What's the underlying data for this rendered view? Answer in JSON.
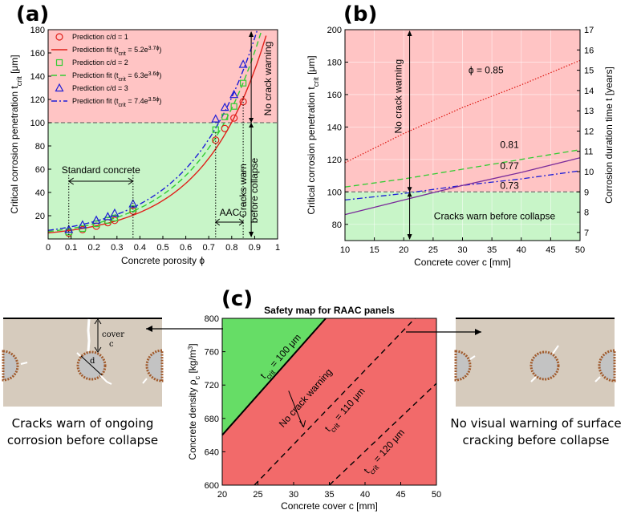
{
  "panel_labels": {
    "a": "(a)",
    "b": "(b)",
    "c": "(c)"
  },
  "colors": {
    "danger": "#ffc4c4",
    "safe": "#c8f5c8",
    "map_danger": "#f26a6a",
    "map_safe": "#66dd66",
    "concrete": "#d6cbbd",
    "rust": "#a05a2c",
    "rebar": "#c3c3c3"
  },
  "chart_data": [
    {
      "id": "a",
      "type": "scatter",
      "xlabel": "Concrete porosity ϕ",
      "ylabel": "Critical corrosion penetration t_crit [μm]",
      "ylabel_main": "Critical corrosion penetration t",
      "ylabel_sub": "crit",
      "ylabel_unit": " [μm]",
      "xlim": [
        0,
        1
      ],
      "ylim": [
        0,
        180
      ],
      "xticks": [
        0,
        0.1,
        0.2,
        0.3,
        0.4,
        0.5,
        0.6,
        0.7,
        0.8,
        0.9,
        1
      ],
      "xtick_labels": [
        "0",
        "0.1",
        "0.2",
        "0.3",
        "0.4",
        "0.5",
        "0.6",
        "0.7",
        "0.8",
        "0.9",
        "1"
      ],
      "yticks": [
        20,
        40,
        60,
        80,
        100,
        120,
        140,
        160,
        180
      ],
      "threshold": 100,
      "series": [
        {
          "name": "Prediction c/d = 1",
          "marker": "circle",
          "color": "#e0201a",
          "x": [
            0.09,
            0.15,
            0.21,
            0.26,
            0.29,
            0.37,
            0.73,
            0.77,
            0.81,
            0.85
          ],
          "y": [
            5,
            8,
            11,
            14,
            16,
            24,
            85,
            95,
            104,
            118
          ]
        },
        {
          "name": "Prediction c/d = 2",
          "marker": "square",
          "color": "#33cc33",
          "x": [
            0.09,
            0.15,
            0.21,
            0.26,
            0.29,
            0.37,
            0.73,
            0.77,
            0.81,
            0.85
          ],
          "y": [
            6,
            9,
            13,
            16,
            18,
            26,
            94,
            105,
            114,
            134
          ]
        },
        {
          "name": "Prediction c/d = 3",
          "marker": "triangle",
          "color": "#1d1dd6",
          "x": [
            0.09,
            0.15,
            0.21,
            0.26,
            0.29,
            0.37,
            0.73,
            0.77,
            0.81,
            0.85
          ],
          "y": [
            8,
            12,
            16,
            19,
            22,
            30,
            103,
            113,
            124,
            150
          ]
        }
      ],
      "fits": [
        {
          "name": "Prediction fit (t_crit = 5.2e^3.7ϕ)",
          "a": 5.2,
          "b": 3.7,
          "color": "#e0201a",
          "dash": ""
        },
        {
          "name": "Prediction fit (t_crit = 6.3e^3.6ϕ)",
          "a": 6.3,
          "b": 3.6,
          "color": "#33cc33",
          "dash": "7,4"
        },
        {
          "name": "Prediction fit (t_crit = 7.4e^3.5ϕ)",
          "a": 7.4,
          "b": 3.5,
          "color": "#1d1dd6",
          "dash": "7,3,2,3"
        }
      ],
      "legend": [
        {
          "kind": "marker",
          "text": "Prediction c/d = 1"
        },
        {
          "kind": "line",
          "pre": "Prediction fit (t",
          "sub": "crit",
          "mid": " = 5.2e",
          "sup": "3.7ϕ",
          "post": ")"
        },
        {
          "kind": "marker",
          "text": "Prediction c/d = 2"
        },
        {
          "kind": "line",
          "pre": "Prediction fit (t",
          "sub": "crit",
          "mid": " = 6.3e",
          "sup": "3.6ϕ",
          "post": ")"
        },
        {
          "kind": "marker",
          "text": "Prediction c/d = 3"
        },
        {
          "kind": "line",
          "pre": "Prediction fit (t",
          "sub": "crit",
          "mid": " = 7.4e",
          "sup": "3.5ϕ",
          "post": ")"
        }
      ],
      "annotations": {
        "standard_concrete": {
          "text": "Standard concrete",
          "x": [
            0.09,
            0.37
          ]
        },
        "aac": {
          "text": "AAC",
          "x": [
            0.73,
            0.85
          ]
        },
        "no_crack": "No crack warning",
        "cracks_warn_line1": "Cracks warn",
        "cracks_warn_line2": "before collapse",
        "arrow_x": 0.885
      }
    },
    {
      "id": "b",
      "type": "line",
      "xlabel": "Concrete cover c [mm]",
      "ylabel": "Critical corrosion penetration t_crit [μm]",
      "ylabel_main": "Critical corrosion penetration t",
      "ylabel_sub": "crit",
      "ylabel_unit": " [μm]",
      "ylabel_right": "Corrosion duration time t [years]",
      "xlim": [
        10,
        50
      ],
      "ylim": [
        70,
        200
      ],
      "xticks": [
        10,
        15,
        20,
        25,
        30,
        35,
        40,
        45,
        50
      ],
      "yticks": [
        80,
        100,
        120,
        140,
        160,
        180,
        200
      ],
      "yticks_right": [
        7,
        8,
        9,
        10,
        11,
        12,
        13,
        14,
        15,
        16,
        17
      ],
      "right_tick_positions": [
        75,
        87.5,
        100,
        112.5,
        125,
        137.5,
        150,
        162.5,
        175,
        187.5,
        200
      ],
      "threshold": 100,
      "series": [
        {
          "name": "ϕ = 0.85",
          "label": "ϕ = 0.85",
          "color": "#e0201a",
          "dash": "1.5,2",
          "x": [
            10,
            20,
            30,
            40,
            50
          ],
          "y": [
            118,
            136,
            152,
            166,
            181
          ],
          "label_xy": [
            34,
            173
          ]
        },
        {
          "name": "0.81",
          "label": "0.81",
          "color": "#33cc33",
          "dash": "7,4",
          "x": [
            10,
            20,
            30,
            40,
            50
          ],
          "y": [
            103,
            108,
            114,
            120,
            126
          ],
          "label_xy": [
            38,
            127
          ]
        },
        {
          "name": "0.77",
          "label": "0.77",
          "color": "#1d1dd6",
          "dash": "7,3,2,3",
          "x": [
            10,
            20,
            30,
            40,
            50
          ],
          "y": [
            95,
            99,
            104,
            108,
            113
          ],
          "label_xy": [
            38,
            114
          ]
        },
        {
          "name": "0.73",
          "label": "0.73",
          "color": "#7a2a9a",
          "dash": "",
          "x": [
            10,
            20,
            30,
            40,
            50
          ],
          "y": [
            86,
            95,
            104,
            112,
            121
          ],
          "label_xy": [
            38,
            102
          ]
        }
      ],
      "annotations": {
        "no_crack": "No crack warning",
        "cracks_warn": "Cracks warn before collapse",
        "arrow_x": 21
      }
    },
    {
      "id": "c",
      "type": "area",
      "title": "Safety map for RAAC panels",
      "xlabel": "Concrete cover c [mm]",
      "ylabel": "Concrete density ρ_c [kg/m³]",
      "ylabel_main": "Concrete density ρ",
      "ylabel_sub": "c",
      "ylabel_unit": " [kg/m",
      "ylabel_sup": "3",
      "ylabel_close": "]",
      "xlim": [
        20,
        50
      ],
      "ylim": [
        600,
        800
      ],
      "xticks": [
        20,
        25,
        30,
        35,
        40,
        45,
        50
      ],
      "yticks": [
        600,
        640,
        680,
        720,
        760,
        800
      ],
      "boundaries": [
        {
          "label_pre": "t",
          "label_sub": "crit",
          "label_post": " = 100 μm",
          "x": [
            20,
            34.5
          ],
          "y": [
            660,
            800
          ],
          "dash": "",
          "label_xy": [
            28.5,
            752
          ]
        },
        {
          "label_pre": "t",
          "label_sub": "crit",
          "label_post": " = 110 μm",
          "x": [
            24.5,
            47
          ],
          "y": [
            600,
            800
          ],
          "dash": "7,5",
          "label_xy": [
            37.5,
            688
          ]
        },
        {
          "label_pre": "t",
          "label_sub": "crit",
          "label_post": " = 120 μm",
          "x": [
            35,
            50
          ],
          "y": [
            600,
            722
          ],
          "dash": "7,5",
          "label_xy": [
            43,
            638
          ]
        }
      ],
      "no_crack": "No crack warning"
    }
  ],
  "left_illustration": {
    "cover_label": "cover",
    "cover_var": "c",
    "diameter_label": "d",
    "caption_line1": "Cracks warn of ongoing",
    "caption_line2": "corrosion before collapse"
  },
  "right_illustration": {
    "caption_line1": "No visual warning of surface",
    "caption_line2": "cracking before collapse"
  }
}
